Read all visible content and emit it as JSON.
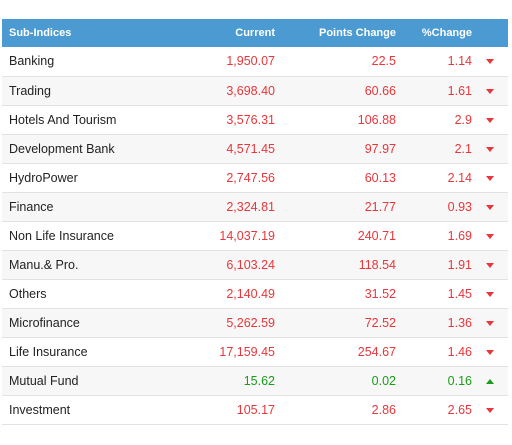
{
  "colors": {
    "header_bg": "#4b9bd2",
    "decline": "#e8363a",
    "advance": "#1a9c1a"
  },
  "table": {
    "headers": {
      "name": "Sub-Indices",
      "current": "Current",
      "points_change": "Points Change",
      "percent_change": "%Change"
    },
    "rows": [
      {
        "name": "Banking",
        "current": "1,950.07",
        "points_change": "22.5",
        "percent_change": "1.14",
        "direction": "down",
        "icon": "down-arrow-icon"
      },
      {
        "name": "Trading",
        "current": "3,698.40",
        "points_change": "60.66",
        "percent_change": "1.61",
        "direction": "down",
        "icon": "down-arrow-icon"
      },
      {
        "name": "Hotels And Tourism",
        "current": "3,576.31",
        "points_change": "106.88",
        "percent_change": "2.9",
        "direction": "down",
        "icon": "down-arrow-icon"
      },
      {
        "name": "Development Bank",
        "current": "4,571.45",
        "points_change": "97.97",
        "percent_change": "2.1",
        "direction": "down",
        "icon": "down-arrow-icon"
      },
      {
        "name": "HydroPower",
        "current": "2,747.56",
        "points_change": "60.13",
        "percent_change": "2.14",
        "direction": "down",
        "icon": "down-arrow-icon"
      },
      {
        "name": "Finance",
        "current": "2,324.81",
        "points_change": "21.77",
        "percent_change": "0.93",
        "direction": "down",
        "icon": "down-arrow-icon"
      },
      {
        "name": "Non Life Insurance",
        "current": "14,037.19",
        "points_change": "240.71",
        "percent_change": "1.69",
        "direction": "down",
        "icon": "down-arrow-icon"
      },
      {
        "name": "Manu.& Pro.",
        "current": "6,103.24",
        "points_change": "118.54",
        "percent_change": "1.91",
        "direction": "down",
        "icon": "down-arrow-icon"
      },
      {
        "name": "Others",
        "current": "2,140.49",
        "points_change": "31.52",
        "percent_change": "1.45",
        "direction": "down",
        "icon": "down-arrow-icon"
      },
      {
        "name": "Microfinance",
        "current": "5,262.59",
        "points_change": "72.52",
        "percent_change": "1.36",
        "direction": "down",
        "icon": "down-arrow-icon"
      },
      {
        "name": "Life Insurance",
        "current": "17,159.45",
        "points_change": "254.67",
        "percent_change": "1.46",
        "direction": "down",
        "icon": "down-arrow-icon"
      },
      {
        "name": "Mutual Fund",
        "current": "15.62",
        "points_change": "0.02",
        "percent_change": "0.16",
        "direction": "up",
        "icon": "up-arrow-icon"
      },
      {
        "name": "Investment",
        "current": "105.17",
        "points_change": "2.86",
        "percent_change": "2.65",
        "direction": "down",
        "icon": "down-arrow-icon"
      }
    ]
  }
}
